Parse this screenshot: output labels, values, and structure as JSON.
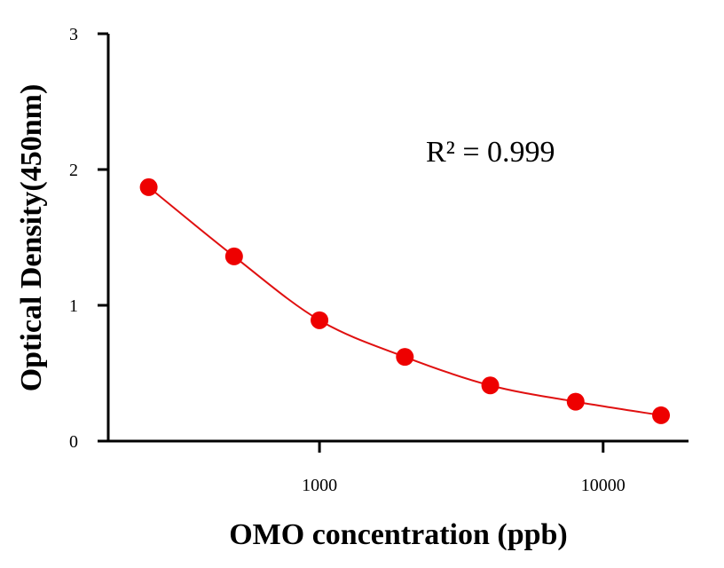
{
  "chart_data": {
    "type": "scatter",
    "title": "",
    "xlabel": "OMO concentration (ppb)",
    "ylabel": "Optical Density(450nm)",
    "x_scale": "log",
    "xlim": [
      180,
      20000
    ],
    "ylim": [
      0,
      3
    ],
    "x_tick_values": [
      1000,
      10000
    ],
    "x_tick_labels": [
      "1000",
      "10000"
    ],
    "y_tick_values": [
      0,
      1,
      2,
      3
    ],
    "y_tick_labels": [
      "0",
      "1",
      "2",
      "3"
    ],
    "series": [
      {
        "x": [
          250,
          500,
          1000,
          2000,
          4000,
          8000,
          16000
        ],
        "y": [
          1.87,
          1.36,
          0.89,
          0.62,
          0.41,
          0.29,
          0.19
        ],
        "marker_color": "#ee0000",
        "fit_line_color": "#e01010"
      }
    ],
    "annotation": "R² = 0.999",
    "grid": false,
    "legend": "none"
  }
}
